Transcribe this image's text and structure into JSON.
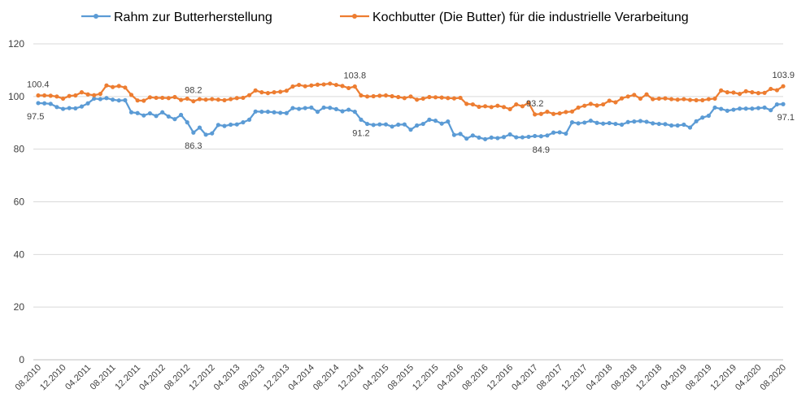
{
  "chart_data": {
    "type": "line",
    "categories": [
      "08.2010",
      null,
      null,
      null,
      "12.2010",
      null,
      null,
      null,
      "04.2011",
      null,
      null,
      null,
      "08.2011",
      null,
      null,
      null,
      "12.2011",
      null,
      null,
      null,
      "04.2012",
      null,
      null,
      null,
      "08.2012",
      null,
      null,
      null,
      "12.2012",
      null,
      null,
      null,
      "04.2013",
      null,
      null,
      null,
      "08.2013",
      null,
      null,
      null,
      "12.2013",
      null,
      null,
      null,
      "04.2014",
      null,
      null,
      null,
      "08.2014",
      null,
      null,
      null,
      "12.2014",
      null,
      null,
      null,
      "04.2015",
      null,
      null,
      null,
      "08.2015",
      null,
      null,
      null,
      "12.2015",
      null,
      null,
      null,
      "04.2016",
      null,
      null,
      null,
      "08.2016",
      null,
      null,
      null,
      "12.2016",
      null,
      null,
      null,
      "04.2017",
      null,
      null,
      null,
      "08.2017",
      null,
      null,
      null,
      "12.2017",
      null,
      null,
      null,
      "04.2018",
      null,
      null,
      null,
      "08.2018",
      null,
      null,
      null,
      "12.2018",
      null,
      null,
      null,
      "04.2019",
      null,
      null,
      null,
      "08.2019",
      null,
      null,
      null,
      "12.2019",
      null,
      null,
      null,
      "04.2020",
      null,
      null,
      null,
      "08.2020"
    ],
    "series": [
      {
        "name": "Rahm zur Butterherstellung",
        "color": "#5b9bd5",
        "label_position": "below",
        "labeled_points": [
          0,
          25,
          52,
          81,
          120
        ],
        "values": [
          97.5,
          97.4,
          97.2,
          96.0,
          95.3,
          95.6,
          95.5,
          96.2,
          97.4,
          99.2,
          99.0,
          99.4,
          98.8,
          98.5,
          98.6,
          94.0,
          93.7,
          92.8,
          93.6,
          92.6,
          94.0,
          92.4,
          91.4,
          93.0,
          90.2,
          86.3,
          88.2,
          85.5,
          86.0,
          89.2,
          88.8,
          89.3,
          89.4,
          90.2,
          91.2,
          94.3,
          94.2,
          94.2,
          94.0,
          93.8,
          93.7,
          95.6,
          95.3,
          95.6,
          95.8,
          94.2,
          95.8,
          95.7,
          95.2,
          94.4,
          95.0,
          94.2,
          91.2,
          89.6,
          89.2,
          89.4,
          89.4,
          88.6,
          89.3,
          89.4,
          87.4,
          89.0,
          89.6,
          91.2,
          90.8,
          89.7,
          90.5,
          85.4,
          85.8,
          84.0,
          85.2,
          84.4,
          83.8,
          84.4,
          84.2,
          84.6,
          85.6,
          84.5,
          84.5,
          84.7,
          85.0,
          84.9,
          85.2,
          86.3,
          86.4,
          85.9,
          90.2,
          89.8,
          90.1,
          90.8,
          90.0,
          89.7,
          89.9,
          89.6,
          89.3,
          90.3,
          90.5,
          90.7,
          90.4,
          89.8,
          89.6,
          89.5,
          89.0,
          89.0,
          89.3,
          88.2,
          90.6,
          92.0,
          92.7,
          95.8,
          95.3,
          94.6,
          95.0,
          95.4,
          95.4,
          95.4,
          95.6,
          95.8,
          94.8,
          97.0,
          97.1
        ]
      },
      {
        "name": "Kochbutter (Die Butter) für die industrielle Verarbeitung",
        "color": "#ed7d31",
        "label_position": "above",
        "labeled_points": [
          0,
          25,
          51,
          80,
          120
        ],
        "values": [
          100.4,
          100.4,
          100.3,
          100.0,
          99.2,
          100.2,
          100.4,
          101.6,
          100.8,
          100.5,
          101.0,
          104.2,
          103.6,
          104.0,
          103.4,
          100.6,
          98.5,
          98.4,
          99.7,
          99.5,
          99.5,
          99.4,
          99.8,
          98.7,
          99.2,
          98.2,
          99.0,
          98.8,
          99.0,
          98.8,
          98.6,
          99.0,
          99.4,
          99.5,
          100.5,
          102.3,
          101.6,
          101.3,
          101.6,
          101.8,
          102.2,
          103.8,
          104.4,
          103.9,
          104.2,
          104.5,
          104.6,
          104.9,
          104.4,
          104.0,
          103.2,
          103.8,
          100.4,
          100.0,
          100.1,
          100.3,
          100.4,
          100.1,
          99.8,
          99.4,
          100.0,
          98.8,
          99.2,
          99.8,
          99.7,
          99.6,
          99.4,
          99.3,
          99.5,
          97.2,
          97.0,
          96.1,
          96.3,
          96.0,
          96.5,
          96.0,
          95.2,
          97.0,
          96.3,
          97.6,
          93.2,
          93.4,
          94.2,
          93.4,
          93.6,
          94.1,
          94.3,
          95.8,
          96.5,
          97.2,
          96.6,
          97.0,
          98.4,
          97.8,
          99.3,
          100.0,
          100.6,
          99.2,
          100.8,
          99.0,
          99.2,
          99.3,
          99.0,
          98.8,
          99.0,
          98.7,
          98.6,
          98.6,
          99.0,
          99.2,
          102.3,
          101.6,
          101.5,
          101.0,
          102.0,
          101.6,
          101.3,
          101.4,
          102.9,
          102.4,
          103.9
        ]
      }
    ],
    "ylim": [
      0,
      120
    ],
    "yticks": [
      0,
      20,
      40,
      60,
      80,
      100,
      120
    ],
    "grid": true,
    "legend": "top"
  }
}
